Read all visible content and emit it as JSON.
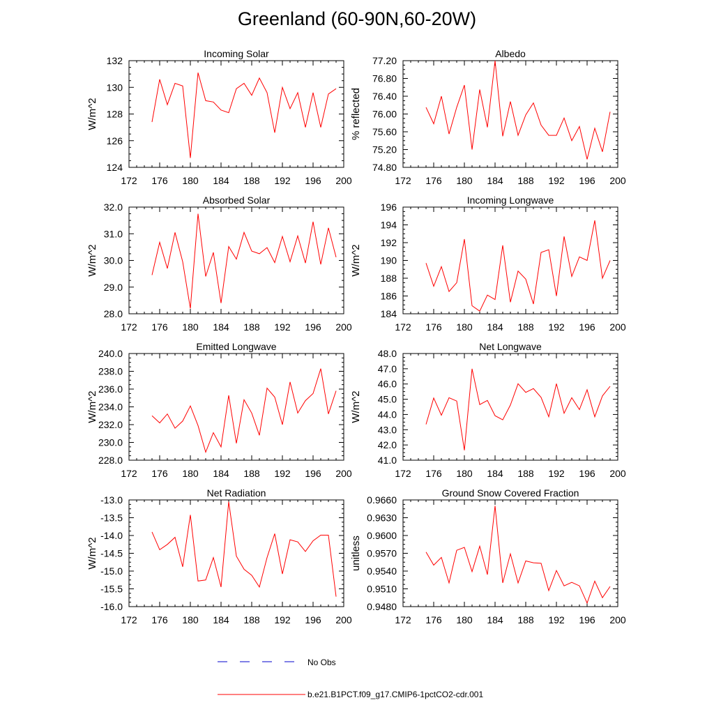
{
  "figure": {
    "title": "Greenland (60-90N,60-20W)",
    "line_color": "#ff0000",
    "obs_color": "#0000cc",
    "legend": {
      "obs_label": "No Obs",
      "model_label": "b.e21.B1PCT.f09_g17.CMIP6-1pctCO2-cdr.001"
    }
  },
  "chart_data": [
    {
      "type": "line",
      "title": "Incoming Solar",
      "ylabel": "W/m^2",
      "xlim": [
        172,
        200
      ],
      "xticks": [
        "172",
        "176",
        "180",
        "184",
        "188",
        "192",
        "196",
        "200"
      ],
      "ylim": [
        124,
        132
      ],
      "yticks": [
        "124",
        "126",
        "128",
        "130",
        "132"
      ],
      "series": [
        {
          "x": [
            175,
            176,
            177,
            178,
            179,
            180,
            181,
            182,
            183,
            184,
            185,
            186,
            187,
            188,
            189,
            190,
            191,
            192,
            193,
            194,
            195,
            196,
            197,
            198,
            199
          ],
          "values": [
            127.4,
            130.6,
            128.7,
            130.3,
            130.1,
            124.7,
            131.1,
            129.0,
            128.9,
            128.3,
            128.1,
            129.9,
            130.3,
            129.4,
            130.7,
            129.6,
            126.6,
            130.0,
            128.4,
            129.6,
            127.0,
            129.6,
            127.0,
            129.5,
            129.9
          ]
        }
      ]
    },
    {
      "type": "line",
      "title": "Albedo",
      "ylabel": "% reflected",
      "xlim": [
        172,
        200
      ],
      "xticks": [
        "172",
        "176",
        "180",
        "184",
        "188",
        "192",
        "196",
        "200"
      ],
      "ylim": [
        74.8,
        77.2
      ],
      "yticks": [
        "74.80",
        "75.20",
        "75.60",
        "76.00",
        "76.40",
        "76.80",
        "77.20"
      ],
      "series": [
        {
          "x": [
            175,
            176,
            177,
            178,
            179,
            180,
            181,
            182,
            183,
            184,
            185,
            186,
            187,
            188,
            189,
            190,
            191,
            192,
            193,
            194,
            195,
            196,
            197,
            198,
            199
          ],
          "values": [
            76.15,
            75.78,
            76.4,
            75.55,
            76.15,
            76.65,
            75.2,
            76.55,
            75.7,
            77.2,
            75.5,
            76.28,
            75.52,
            75.98,
            76.25,
            75.75,
            75.52,
            75.52,
            75.91,
            75.4,
            75.72,
            74.98,
            75.68,
            75.15,
            76.05
          ]
        }
      ]
    },
    {
      "type": "line",
      "title": "Absorbed Solar",
      "ylabel": "W/m^2",
      "xlim": [
        172,
        200
      ],
      "xticks": [
        "172",
        "176",
        "180",
        "184",
        "188",
        "192",
        "196",
        "200"
      ],
      "ylim": [
        28,
        32
      ],
      "yticks": [
        "28.0",
        "29.0",
        "30.0",
        "31.0",
        "32.0"
      ],
      "series": [
        {
          "x": [
            175,
            176,
            177,
            178,
            179,
            180,
            181,
            182,
            183,
            184,
            185,
            186,
            187,
            188,
            189,
            190,
            191,
            192,
            193,
            194,
            195,
            196,
            197,
            198,
            199
          ],
          "values": [
            29.45,
            30.68,
            29.7,
            31.05,
            29.95,
            28.2,
            31.75,
            29.4,
            30.3,
            28.4,
            30.52,
            30.05,
            31.05,
            30.35,
            30.25,
            30.48,
            29.92,
            30.9,
            29.95,
            30.92,
            29.9,
            31.45,
            29.85,
            31.22,
            30.12
          ]
        }
      ]
    },
    {
      "type": "line",
      "title": "Incoming Longwave",
      "ylabel": "W/m^2",
      "xlim": [
        172,
        200
      ],
      "xticks": [
        "172",
        "176",
        "180",
        "184",
        "188",
        "192",
        "196",
        "200"
      ],
      "ylim": [
        184,
        196
      ],
      "yticks": [
        "184",
        "186",
        "188",
        "190",
        "192",
        "194",
        "196"
      ],
      "series": [
        {
          "x": [
            175,
            176,
            177,
            178,
            179,
            180,
            181,
            182,
            183,
            184,
            185,
            186,
            187,
            188,
            189,
            190,
            191,
            192,
            193,
            194,
            195,
            196,
            197,
            198,
            199
          ],
          "values": [
            189.7,
            187.1,
            189.3,
            186.5,
            187.5,
            192.4,
            184.9,
            184.3,
            186.1,
            185.6,
            191.7,
            185.3,
            188.8,
            187.9,
            185.1,
            190.9,
            191.2,
            186.0,
            192.7,
            188.2,
            190.4,
            190.0,
            194.5,
            188.0,
            190.0
          ]
        }
      ]
    },
    {
      "type": "line",
      "title": "Emitted Longwave",
      "ylabel": "W/m^2",
      "xlim": [
        172,
        200
      ],
      "xticks": [
        "172",
        "176",
        "180",
        "184",
        "188",
        "192",
        "196",
        "200"
      ],
      "ylim": [
        228,
        240
      ],
      "yticks": [
        "228.0",
        "230.0",
        "232.0",
        "234.0",
        "236.0",
        "238.0",
        "240.0"
      ],
      "series": [
        {
          "x": [
            175,
            176,
            177,
            178,
            179,
            180,
            181,
            182,
            183,
            184,
            185,
            186,
            187,
            188,
            189,
            190,
            191,
            192,
            193,
            194,
            195,
            196,
            197,
            198,
            199
          ],
          "values": [
            233.0,
            232.2,
            233.2,
            231.6,
            232.4,
            234.1,
            231.9,
            228.9,
            231.1,
            229.5,
            235.3,
            229.9,
            234.8,
            233.3,
            230.8,
            236.1,
            235.1,
            232.0,
            236.8,
            233.3,
            234.7,
            235.5,
            238.3,
            233.2,
            235.8
          ]
        }
      ]
    },
    {
      "type": "line",
      "title": "Net Longwave",
      "ylabel": "W/m^2",
      "xlim": [
        172,
        200
      ],
      "xticks": [
        "172",
        "176",
        "180",
        "184",
        "188",
        "192",
        "196",
        "200"
      ],
      "ylim": [
        41,
        48
      ],
      "yticks": [
        "41.0",
        "42.0",
        "43.0",
        "44.0",
        "45.0",
        "46.0",
        "47.0",
        "48.0"
      ],
      "series": [
        {
          "x": [
            175,
            176,
            177,
            178,
            179,
            180,
            181,
            182,
            183,
            184,
            185,
            186,
            187,
            188,
            189,
            190,
            191,
            192,
            193,
            194,
            195,
            196,
            197,
            198,
            199
          ],
          "values": [
            43.35,
            45.08,
            43.95,
            45.1,
            44.88,
            41.65,
            47.0,
            44.65,
            44.92,
            43.92,
            43.65,
            44.62,
            46.02,
            45.45,
            45.7,
            45.12,
            43.85,
            46.02,
            44.08,
            45.1,
            44.32,
            45.62,
            43.85,
            45.22,
            45.85
          ]
        }
      ]
    },
    {
      "type": "line",
      "title": "Net Radiation",
      "ylabel": "W/m^2",
      "xlim": [
        172,
        200
      ],
      "xticks": [
        "172",
        "176",
        "180",
        "184",
        "188",
        "192",
        "196",
        "200"
      ],
      "ylim": [
        -16,
        -13
      ],
      "yticks": [
        "-16.0",
        "-15.5",
        "-15.0",
        "-14.5",
        "-14.0",
        "-13.5",
        "-13.0"
      ],
      "series": [
        {
          "x": [
            175,
            176,
            177,
            178,
            179,
            180,
            181,
            182,
            183,
            184,
            185,
            186,
            187,
            188,
            189,
            190,
            191,
            192,
            193,
            194,
            195,
            196,
            197,
            198,
            199
          ],
          "values": [
            -13.9,
            -14.4,
            -14.25,
            -14.05,
            -14.88,
            -13.42,
            -15.28,
            -15.25,
            -14.62,
            -15.45,
            -13.05,
            -14.58,
            -14.95,
            -15.12,
            -15.45,
            -14.62,
            -13.95,
            -15.08,
            -14.12,
            -14.18,
            -14.45,
            -14.15,
            -13.99,
            -13.99,
            -15.72
          ]
        }
      ]
    },
    {
      "type": "line",
      "title": "Ground Snow Covered Fraction",
      "ylabel": "unitless",
      "xlim": [
        172,
        200
      ],
      "xticks": [
        "172",
        "176",
        "180",
        "184",
        "188",
        "192",
        "196",
        "200"
      ],
      "ylim": [
        0.948,
        0.966
      ],
      "yticks": [
        "0.9480",
        "0.9510",
        "0.9540",
        "0.9570",
        "0.9600",
        "0.9630",
        "0.9660"
      ],
      "series": [
        {
          "x": [
            175,
            176,
            177,
            178,
            179,
            180,
            181,
            182,
            183,
            184,
            185,
            186,
            187,
            188,
            189,
            190,
            191,
            192,
            193,
            194,
            195,
            196,
            197,
            198,
            199
          ],
          "values": [
            0.9572,
            0.955,
            0.9563,
            0.952,
            0.9575,
            0.958,
            0.9539,
            0.9582,
            0.9534,
            0.965,
            0.952,
            0.9569,
            0.952,
            0.9557,
            0.9554,
            0.9553,
            0.9507,
            0.9541,
            0.9515,
            0.9521,
            0.9515,
            0.9486,
            0.9523,
            0.9495,
            0.9514
          ]
        }
      ]
    }
  ]
}
